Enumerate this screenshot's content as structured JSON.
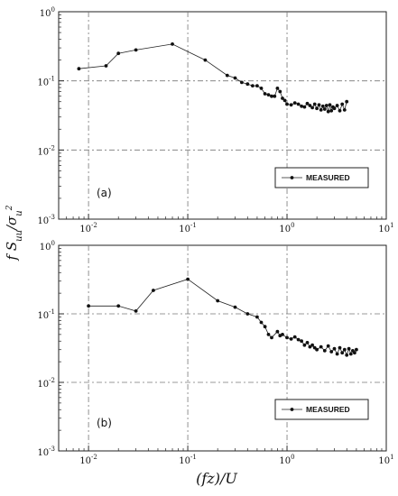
{
  "figure": {
    "xlabel": "(fz)/U",
    "ylabel": "fS̃uu/σu2"
  },
  "chart_data": [
    {
      "type": "line",
      "panel_label": "(a)",
      "xscale": "log",
      "yscale": "log",
      "xlim": [
        0.005,
        10
      ],
      "ylim": [
        0.001,
        1
      ],
      "grid": true,
      "legend_position": "bottom-right",
      "x_ticks": [
        "10-2",
        "10-1",
        "100",
        "101"
      ],
      "y_ticks": [
        "100",
        "10-1",
        "10-2",
        "10-3"
      ],
      "series": [
        {
          "name": "MEASURED",
          "x": [
            0.008,
            0.015,
            0.02,
            0.03,
            0.07,
            0.15,
            0.25,
            0.3,
            0.35,
            0.4,
            0.45,
            0.5,
            0.55,
            0.6,
            0.65,
            0.7,
            0.75,
            0.8,
            0.85,
            0.9,
            0.95,
            1.0,
            1.1,
            1.2,
            1.3,
            1.4,
            1.5,
            1.6,
            1.7,
            1.8,
            1.9,
            2.0,
            2.1,
            2.2,
            2.3,
            2.4,
            2.5,
            2.6,
            2.7,
            2.8,
            2.9,
            3.0,
            3.2,
            3.4,
            3.6,
            3.8,
            4.0
          ],
          "y": [
            0.15,
            0.165,
            0.25,
            0.28,
            0.34,
            0.2,
            0.12,
            0.11,
            0.095,
            0.09,
            0.085,
            0.085,
            0.078,
            0.065,
            0.063,
            0.06,
            0.06,
            0.078,
            0.07,
            0.056,
            0.052,
            0.046,
            0.045,
            0.048,
            0.046,
            0.043,
            0.042,
            0.047,
            0.044,
            0.041,
            0.046,
            0.04,
            0.045,
            0.038,
            0.043,
            0.039,
            0.044,
            0.036,
            0.045,
            0.037,
            0.042,
            0.04,
            0.044,
            0.037,
            0.046,
            0.038,
            0.05
          ]
        }
      ]
    },
    {
      "type": "line",
      "panel_label": "(b)",
      "xscale": "log",
      "yscale": "log",
      "xlim": [
        0.005,
        10
      ],
      "ylim": [
        0.001,
        1
      ],
      "grid": true,
      "legend_position": "bottom-right",
      "x_ticks": [
        "10-2",
        "10-1",
        "100",
        "101"
      ],
      "y_ticks": [
        "100",
        "10-1",
        "10-2",
        "10-3"
      ],
      "series": [
        {
          "name": "MEASURED",
          "x": [
            0.01,
            0.02,
            0.03,
            0.045,
            0.1,
            0.2,
            0.3,
            0.4,
            0.5,
            0.55,
            0.6,
            0.65,
            0.7,
            0.8,
            0.85,
            0.9,
            1.0,
            1.1,
            1.2,
            1.3,
            1.4,
            1.5,
            1.6,
            1.7,
            1.8,
            1.9,
            2.0,
            2.2,
            2.4,
            2.6,
            2.8,
            3.0,
            3.2,
            3.4,
            3.6,
            3.8,
            4.0,
            4.2,
            4.4,
            4.6,
            4.8,
            5.0
          ],
          "y": [
            0.13,
            0.13,
            0.11,
            0.22,
            0.32,
            0.155,
            0.125,
            0.1,
            0.09,
            0.075,
            0.065,
            0.05,
            0.045,
            0.055,
            0.048,
            0.05,
            0.045,
            0.043,
            0.046,
            0.042,
            0.04,
            0.035,
            0.038,
            0.033,
            0.035,
            0.032,
            0.03,
            0.033,
            0.029,
            0.034,
            0.028,
            0.031,
            0.026,
            0.032,
            0.027,
            0.03,
            0.025,
            0.031,
            0.026,
            0.029,
            0.027,
            0.03
          ]
        }
      ]
    }
  ]
}
